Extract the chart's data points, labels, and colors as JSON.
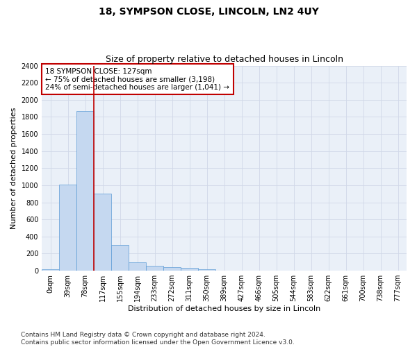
{
  "title_line1": "18, SYMPSON CLOSE, LINCOLN, LN2 4UY",
  "title_line2": "Size of property relative to detached houses in Lincoln",
  "xlabel": "Distribution of detached houses by size in Lincoln",
  "ylabel": "Number of detached properties",
  "categories": [
    "0sqm",
    "39sqm",
    "78sqm",
    "117sqm",
    "155sqm",
    "194sqm",
    "233sqm",
    "272sqm",
    "311sqm",
    "350sqm",
    "389sqm",
    "427sqm",
    "466sqm",
    "505sqm",
    "544sqm",
    "583sqm",
    "622sqm",
    "661sqm",
    "700sqm",
    "738sqm",
    "777sqm"
  ],
  "values": [
    20,
    1005,
    1865,
    900,
    305,
    100,
    55,
    45,
    30,
    20,
    0,
    0,
    0,
    0,
    0,
    0,
    0,
    0,
    0,
    0,
    0
  ],
  "bar_color": "#c5d8f0",
  "bar_edge_color": "#5b9bd5",
  "vline_x": 2.5,
  "vline_color": "#c00000",
  "annotation_text": "18 SYMPSON CLOSE: 127sqm\n← 75% of detached houses are smaller (3,198)\n24% of semi-detached houses are larger (1,041) →",
  "annotation_box_color": "#c00000",
  "ylim": [
    0,
    2400
  ],
  "yticks": [
    0,
    200,
    400,
    600,
    800,
    1000,
    1200,
    1400,
    1600,
    1800,
    2000,
    2200,
    2400
  ],
  "grid_color": "#d0d8e8",
  "bg_color": "#eaf0f8",
  "footer": "Contains HM Land Registry data © Crown copyright and database right 2024.\nContains public sector information licensed under the Open Government Licence v3.0.",
  "title_fontsize": 10,
  "subtitle_fontsize": 9,
  "xlabel_fontsize": 8,
  "ylabel_fontsize": 8,
  "tick_fontsize": 7,
  "annotation_fontsize": 7.5,
  "footer_fontsize": 6.5
}
